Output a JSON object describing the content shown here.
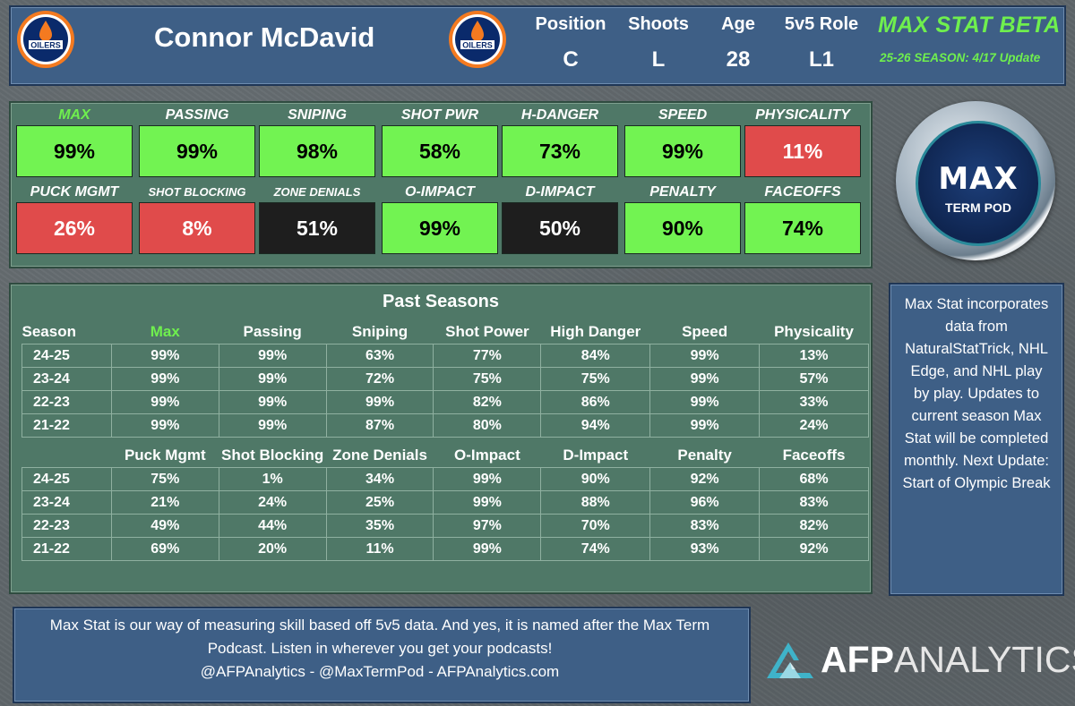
{
  "header": {
    "team_logo_text": "OILERS",
    "player_name": "Connor McDavid",
    "info": [
      {
        "label": "Position",
        "value": "C"
      },
      {
        "label": "Shoots",
        "value": "L"
      },
      {
        "label": "Age",
        "value": "28"
      },
      {
        "label": "5v5 Role",
        "value": "L1"
      }
    ],
    "brand_title": "MAX STAT BETA",
    "brand_subtitle": "25-26 SEASON: 4/17 Update",
    "brand_color": "#6fef4e"
  },
  "current_stats": [
    {
      "label": "MAX",
      "value": "99%",
      "status": "green",
      "label_color": "#6fef4e"
    },
    {
      "label": "PASSING",
      "value": "99%",
      "status": "green"
    },
    {
      "label": "SNIPING",
      "value": "98%",
      "status": "green"
    },
    {
      "label": "SHOT PWR",
      "value": "58%",
      "status": "green"
    },
    {
      "label": "H-DANGER",
      "value": "73%",
      "status": "green"
    },
    {
      "label": "SPEED",
      "value": "99%",
      "status": "green"
    },
    {
      "label": "PHYSICALITY",
      "value": "11%",
      "status": "red"
    },
    {
      "label": "PUCK MGMT",
      "value": "26%",
      "status": "red"
    },
    {
      "label": "SHOT BLOCKING",
      "value": "8%",
      "status": "red"
    },
    {
      "label": "ZONE DENIALS",
      "value": "51%",
      "status": "black"
    },
    {
      "label": "O-IMPACT",
      "value": "99%",
      "status": "green"
    },
    {
      "label": "D-IMPACT",
      "value": "50%",
      "status": "black"
    },
    {
      "label": "PENALTY",
      "value": "90%",
      "status": "green"
    },
    {
      "label": "FACEOFFS",
      "value": "74%",
      "status": "green"
    }
  ],
  "status_colors": {
    "green": "#72f352",
    "red": "#e04b4b",
    "black": "#1e1e1e"
  },
  "podcast_logo": {
    "line1": "MAX",
    "line2": "TERM POD"
  },
  "past_seasons": {
    "title": "Past Seasons",
    "table1": {
      "headers": [
        "Season",
        "Max",
        "Passing",
        "Sniping",
        "Shot Power",
        "High Danger",
        "Speed",
        "Physicality"
      ],
      "rows": [
        [
          "24-25",
          "99%",
          "99%",
          "63%",
          "77%",
          "84%",
          "99%",
          "13%"
        ],
        [
          "23-24",
          "99%",
          "99%",
          "72%",
          "75%",
          "75%",
          "99%",
          "57%"
        ],
        [
          "22-23",
          "99%",
          "99%",
          "99%",
          "82%",
          "86%",
          "99%",
          "33%"
        ],
        [
          "21-22",
          "99%",
          "99%",
          "87%",
          "80%",
          "94%",
          "99%",
          "24%"
        ]
      ]
    },
    "table2": {
      "headers": [
        "",
        "Puck Mgmt",
        "Shot Blocking",
        "Zone Denials",
        "O-Impact",
        "D-Impact",
        "Penalty",
        "Faceoffs"
      ],
      "rows": [
        [
          "24-25",
          "75%",
          "1%",
          "34%",
          "99%",
          "90%",
          "92%",
          "68%"
        ],
        [
          "23-24",
          "21%",
          "24%",
          "25%",
          "99%",
          "88%",
          "96%",
          "83%"
        ],
        [
          "22-23",
          "49%",
          "44%",
          "35%",
          "97%",
          "70%",
          "83%",
          "82%"
        ],
        [
          "21-22",
          "69%",
          "20%",
          "11%",
          "99%",
          "74%",
          "93%",
          "92%"
        ]
      ]
    }
  },
  "side_info": {
    "text": "Max Stat incorporates data from NaturalStatTrick, NHL Edge, and NHL play by play. Updates to current season Max Stat will be completed monthly. Next Update: Start of Olympic Break"
  },
  "footer": {
    "line1": "Max Stat is our way of measuring skill based off 5v5 data. And yes, it is named after the Max Term",
    "line2": "Podcast. Listen in wherever you get your podcasts!",
    "line3": "@AFPAnalytics - @MaxTermPod - AFPAnalytics.com"
  },
  "brand_logo": {
    "part1": "AFP",
    "part2": "ANALYTICS"
  }
}
